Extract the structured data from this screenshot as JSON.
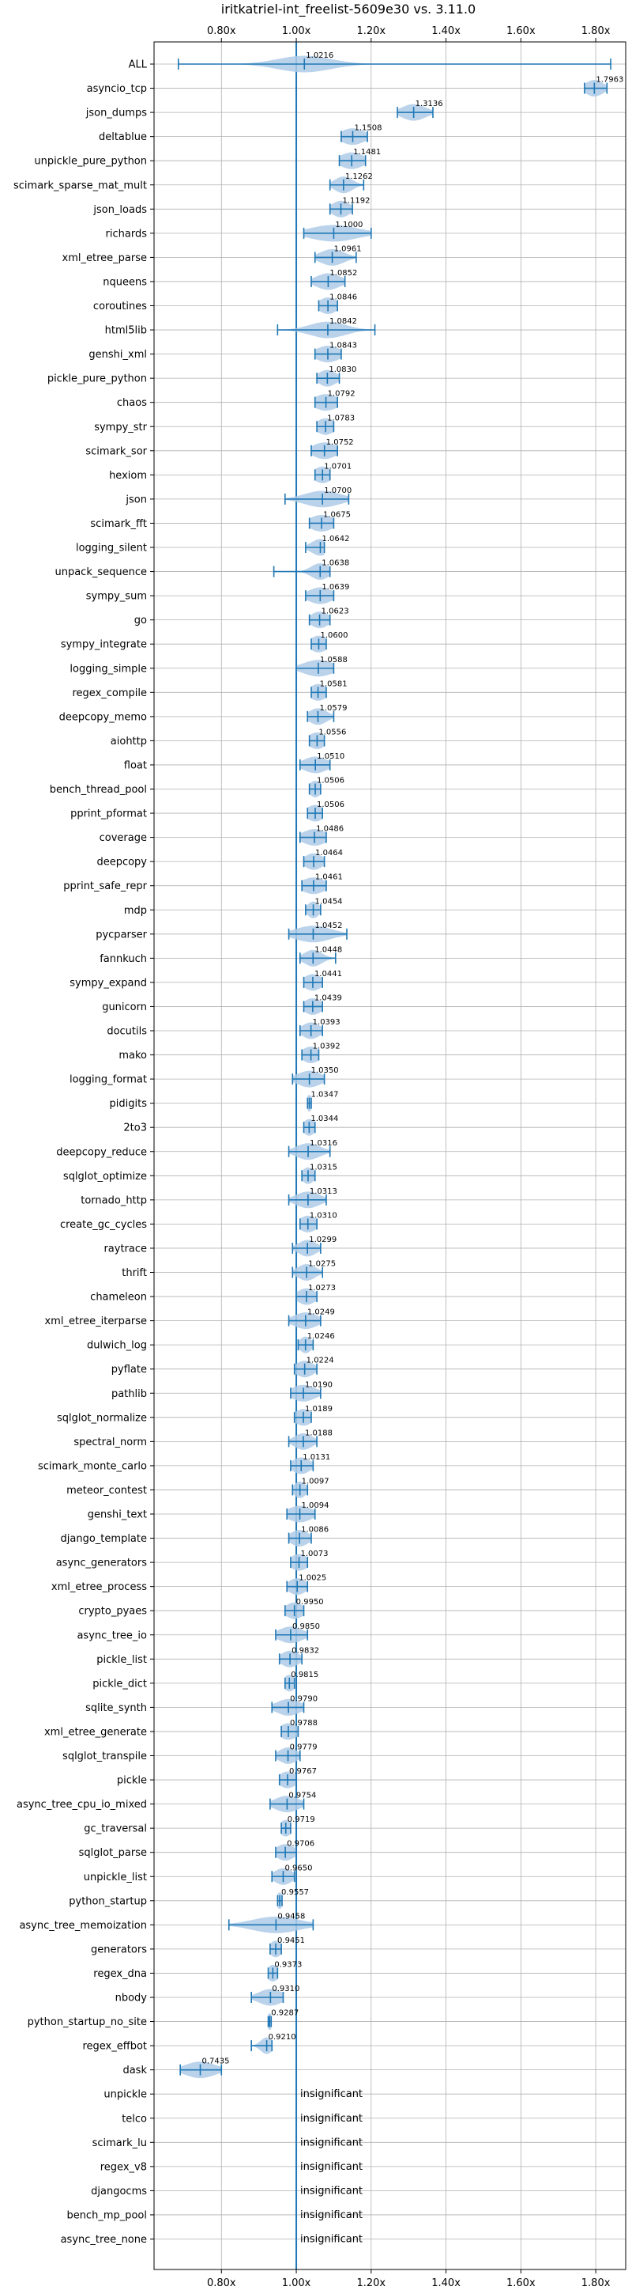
{
  "chart_data": {
    "type": "violin",
    "title": "iritkatriel-int_freelist-5609e30 vs. 3.11.0",
    "xlim": [
      0.62,
      1.88
    ],
    "x_ticks": [
      0.8,
      1.0,
      1.2,
      1.4,
      1.6,
      1.8
    ],
    "x_tick_labels": [
      "0.80x",
      "1.00x",
      "1.20x",
      "1.40x",
      "1.60x",
      "1.80x"
    ],
    "reference_line": 1.0,
    "grid": true,
    "insignificant_label": "insignificant",
    "colors": {
      "violin": "#aecbe8",
      "line": "#1f77b4",
      "grid": "#b0b0b0"
    },
    "benchmarks": [
      {
        "name": "ALL",
        "value": 1.0216,
        "label": "1.0216",
        "min": 0.685,
        "max": 1.84,
        "spread": 0.09
      },
      {
        "name": "asyncio_tcp",
        "value": 1.7963,
        "label": "1.7963",
        "min": 1.77,
        "max": 1.83,
        "spread": 0.03
      },
      {
        "name": "json_dumps",
        "value": 1.3136,
        "label": "1.3136",
        "min": 1.27,
        "max": 1.365,
        "spread": 0.04
      },
      {
        "name": "deltablue",
        "value": 1.1508,
        "label": "1.1508",
        "min": 1.12,
        "max": 1.19,
        "spread": 0.04
      },
      {
        "name": "unpickle_pure_python",
        "value": 1.1481,
        "label": "1.1481",
        "min": 1.115,
        "max": 1.185,
        "spread": 0.04
      },
      {
        "name": "scimark_sparse_mat_mult",
        "value": 1.1262,
        "label": "1.1262",
        "min": 1.09,
        "max": 1.18,
        "spread": 0.03
      },
      {
        "name": "json_loads",
        "value": 1.1192,
        "label": "1.1192",
        "min": 1.09,
        "max": 1.15,
        "spread": 0.03
      },
      {
        "name": "richards",
        "value": 1.1,
        "label": "1.1000",
        "min": 1.02,
        "max": 1.2,
        "spread": 0.08
      },
      {
        "name": "xml_etree_parse",
        "value": 1.0961,
        "label": "1.0961",
        "min": 1.05,
        "max": 1.16,
        "spread": 0.04
      },
      {
        "name": "nqueens",
        "value": 1.0852,
        "label": "1.0852",
        "min": 1.04,
        "max": 1.13,
        "spread": 0.04
      },
      {
        "name": "coroutines",
        "value": 1.0846,
        "label": "1.0846",
        "min": 1.06,
        "max": 1.11,
        "spread": 0.03
      },
      {
        "name": "html5lib",
        "value": 1.0842,
        "label": "1.0842",
        "min": 0.95,
        "max": 1.21,
        "spread": 0.06
      },
      {
        "name": "genshi_xml",
        "value": 1.0843,
        "label": "1.0843",
        "min": 1.05,
        "max": 1.12,
        "spread": 0.04
      },
      {
        "name": "pickle_pure_python",
        "value": 1.083,
        "label": "1.0830",
        "min": 1.055,
        "max": 1.115,
        "spread": 0.03
      },
      {
        "name": "chaos",
        "value": 1.0792,
        "label": "1.0792",
        "min": 1.05,
        "max": 1.11,
        "spread": 0.04
      },
      {
        "name": "sympy_str",
        "value": 1.0783,
        "label": "1.0783",
        "min": 1.055,
        "max": 1.1,
        "spread": 0.03
      },
      {
        "name": "scimark_sor",
        "value": 1.0752,
        "label": "1.0752",
        "min": 1.04,
        "max": 1.11,
        "spread": 0.04
      },
      {
        "name": "hexiom",
        "value": 1.0701,
        "label": "1.0701",
        "min": 1.05,
        "max": 1.09,
        "spread": 0.03
      },
      {
        "name": "json",
        "value": 1.07,
        "label": "1.0700",
        "min": 0.97,
        "max": 1.14,
        "spread": 0.06
      },
      {
        "name": "scimark_fft",
        "value": 1.0675,
        "label": "1.0675",
        "min": 1.035,
        "max": 1.1,
        "spread": 0.04
      },
      {
        "name": "logging_silent",
        "value": 1.0642,
        "label": "1.0642",
        "min": 1.025,
        "max": 1.075,
        "spread": 0.03
      },
      {
        "name": "unpack_sequence",
        "value": 1.0638,
        "label": "1.0638",
        "min": 0.94,
        "max": 1.09,
        "spread": 0.03
      },
      {
        "name": "sympy_sum",
        "value": 1.0639,
        "label": "1.0639",
        "min": 1.025,
        "max": 1.1,
        "spread": 0.04
      },
      {
        "name": "go",
        "value": 1.0623,
        "label": "1.0623",
        "min": 1.035,
        "max": 1.09,
        "spread": 0.03
      },
      {
        "name": "sympy_integrate",
        "value": 1.06,
        "label": "1.0600",
        "min": 1.04,
        "max": 1.08,
        "spread": 0.03
      },
      {
        "name": "logging_simple",
        "value": 1.0588,
        "label": "1.0588",
        "min": 1.0,
        "max": 1.1,
        "spread": 0.05
      },
      {
        "name": "regex_compile",
        "value": 1.0581,
        "label": "1.0581",
        "min": 1.04,
        "max": 1.08,
        "spread": 0.03
      },
      {
        "name": "deepcopy_memo",
        "value": 1.0579,
        "label": "1.0579",
        "min": 1.03,
        "max": 1.1,
        "spread": 0.03
      },
      {
        "name": "aiohttp",
        "value": 1.0556,
        "label": "1.0556",
        "min": 1.035,
        "max": 1.075,
        "spread": 0.03
      },
      {
        "name": "float",
        "value": 1.051,
        "label": "1.0510",
        "min": 1.01,
        "max": 1.09,
        "spread": 0.04
      },
      {
        "name": "bench_thread_pool",
        "value": 1.0506,
        "label": "1.0506",
        "min": 1.035,
        "max": 1.065,
        "spread": 0.02
      },
      {
        "name": "pprint_pformat",
        "value": 1.0506,
        "label": "1.0506",
        "min": 1.03,
        "max": 1.07,
        "spread": 0.03
      },
      {
        "name": "coverage",
        "value": 1.0486,
        "label": "1.0486",
        "min": 1.01,
        "max": 1.08,
        "spread": 0.04
      },
      {
        "name": "deepcopy",
        "value": 1.0464,
        "label": "1.0464",
        "min": 1.02,
        "max": 1.075,
        "spread": 0.03
      },
      {
        "name": "pprint_safe_repr",
        "value": 1.0461,
        "label": "1.0461",
        "min": 1.015,
        "max": 1.08,
        "spread": 0.04
      },
      {
        "name": "mdp",
        "value": 1.0454,
        "label": "1.0454",
        "min": 1.025,
        "max": 1.065,
        "spread": 0.02
      },
      {
        "name": "pycparser",
        "value": 1.0452,
        "label": "1.0452",
        "min": 0.98,
        "max": 1.135,
        "spread": 0.06
      },
      {
        "name": "fannkuch",
        "value": 1.0448,
        "label": "1.0448",
        "min": 1.01,
        "max": 1.105,
        "spread": 0.03
      },
      {
        "name": "sympy_expand",
        "value": 1.0441,
        "label": "1.0441",
        "min": 1.02,
        "max": 1.07,
        "spread": 0.03
      },
      {
        "name": "gunicorn",
        "value": 1.0439,
        "label": "1.0439",
        "min": 1.02,
        "max": 1.07,
        "spread": 0.03
      },
      {
        "name": "docutils",
        "value": 1.0393,
        "label": "1.0393",
        "min": 1.01,
        "max": 1.07,
        "spread": 0.03
      },
      {
        "name": "mako",
        "value": 1.0392,
        "label": "1.0392",
        "min": 1.015,
        "max": 1.06,
        "spread": 0.03
      },
      {
        "name": "logging_format",
        "value": 1.035,
        "label": "1.0350",
        "min": 0.99,
        "max": 1.075,
        "spread": 0.04
      },
      {
        "name": "pidigits",
        "value": 1.0347,
        "label": "1.0347",
        "min": 1.03,
        "max": 1.04,
        "spread": 0.01
      },
      {
        "name": "2to3",
        "value": 1.0344,
        "label": "1.0344",
        "min": 1.02,
        "max": 1.05,
        "spread": 0.02
      },
      {
        "name": "deepcopy_reduce",
        "value": 1.0316,
        "label": "1.0316",
        "min": 0.98,
        "max": 1.09,
        "spread": 0.04
      },
      {
        "name": "sqlglot_optimize",
        "value": 1.0315,
        "label": "1.0315",
        "min": 1.015,
        "max": 1.05,
        "spread": 0.02
      },
      {
        "name": "tornado_http",
        "value": 1.0313,
        "label": "1.0313",
        "min": 0.98,
        "max": 1.08,
        "spread": 0.04
      },
      {
        "name": "create_gc_cycles",
        "value": 1.031,
        "label": "1.0310",
        "min": 1.01,
        "max": 1.055,
        "spread": 0.03
      },
      {
        "name": "raytrace",
        "value": 1.0299,
        "label": "1.0299",
        "min": 0.99,
        "max": 1.065,
        "spread": 0.03
      },
      {
        "name": "thrift",
        "value": 1.0275,
        "label": "1.0275",
        "min": 0.99,
        "max": 1.07,
        "spread": 0.03
      },
      {
        "name": "chameleon",
        "value": 1.0273,
        "label": "1.0273",
        "min": 1.0,
        "max": 1.055,
        "spread": 0.03
      },
      {
        "name": "xml_etree_iterparse",
        "value": 1.0249,
        "label": "1.0249",
        "min": 0.98,
        "max": 1.065,
        "spread": 0.04
      },
      {
        "name": "dulwich_log",
        "value": 1.0246,
        "label": "1.0246",
        "min": 1.005,
        "max": 1.045,
        "spread": 0.02
      },
      {
        "name": "pyflate",
        "value": 1.0224,
        "label": "1.0224",
        "min": 0.995,
        "max": 1.055,
        "spread": 0.03
      },
      {
        "name": "pathlib",
        "value": 1.019,
        "label": "1.0190",
        "min": 0.985,
        "max": 1.065,
        "spread": 0.04
      },
      {
        "name": "sqlglot_normalize",
        "value": 1.0189,
        "label": "1.0189",
        "min": 0.995,
        "max": 1.04,
        "spread": 0.03
      },
      {
        "name": "spectral_norm",
        "value": 1.0188,
        "label": "1.0188",
        "min": 0.98,
        "max": 1.055,
        "spread": 0.03
      },
      {
        "name": "scimark_monte_carlo",
        "value": 1.0131,
        "label": "1.0131",
        "min": 0.985,
        "max": 1.045,
        "spread": 0.03
      },
      {
        "name": "meteor_contest",
        "value": 1.0097,
        "label": "1.0097",
        "min": 0.99,
        "max": 1.03,
        "spread": 0.02
      },
      {
        "name": "genshi_text",
        "value": 1.0094,
        "label": "1.0094",
        "min": 0.975,
        "max": 1.05,
        "spread": 0.04
      },
      {
        "name": "django_template",
        "value": 1.0086,
        "label": "1.0086",
        "min": 0.98,
        "max": 1.04,
        "spread": 0.03
      },
      {
        "name": "async_generators",
        "value": 1.0073,
        "label": "1.0073",
        "min": 0.985,
        "max": 1.03,
        "spread": 0.03
      },
      {
        "name": "xml_etree_process",
        "value": 1.0025,
        "label": "1.0025",
        "min": 0.975,
        "max": 1.03,
        "spread": 0.03
      },
      {
        "name": "crypto_pyaes",
        "value": 0.995,
        "label": "0.9950",
        "min": 0.97,
        "max": 1.02,
        "spread": 0.03
      },
      {
        "name": "async_tree_io",
        "value": 0.985,
        "label": "0.9850",
        "min": 0.945,
        "max": 1.03,
        "spread": 0.04
      },
      {
        "name": "pickle_list",
        "value": 0.9832,
        "label": "0.9832",
        "min": 0.955,
        "max": 1.015,
        "spread": 0.03
      },
      {
        "name": "pickle_dict",
        "value": 0.9815,
        "label": "0.9815",
        "min": 0.97,
        "max": 0.995,
        "spread": 0.02
      },
      {
        "name": "sqlite_synth",
        "value": 0.979,
        "label": "0.9790",
        "min": 0.935,
        "max": 1.02,
        "spread": 0.04
      },
      {
        "name": "xml_etree_generate",
        "value": 0.9788,
        "label": "0.9788",
        "min": 0.96,
        "max": 1.005,
        "spread": 0.03
      },
      {
        "name": "sqlglot_transpile",
        "value": 0.9779,
        "label": "0.9779",
        "min": 0.945,
        "max": 1.01,
        "spread": 0.03
      },
      {
        "name": "pickle",
        "value": 0.9767,
        "label": "0.9767",
        "min": 0.955,
        "max": 1.0,
        "spread": 0.03
      },
      {
        "name": "async_tree_cpu_io_mixed",
        "value": 0.9754,
        "label": "0.9754",
        "min": 0.93,
        "max": 1.02,
        "spread": 0.04
      },
      {
        "name": "gc_traversal",
        "value": 0.9719,
        "label": "0.9719",
        "min": 0.96,
        "max": 0.985,
        "spread": 0.02
      },
      {
        "name": "sqlglot_parse",
        "value": 0.9706,
        "label": "0.9706",
        "min": 0.945,
        "max": 1.0,
        "spread": 0.03
      },
      {
        "name": "unpickle_list",
        "value": 0.965,
        "label": "0.9650",
        "min": 0.935,
        "max": 0.995,
        "spread": 0.03
      },
      {
        "name": "python_startup",
        "value": 0.9557,
        "label": "0.9557",
        "min": 0.95,
        "max": 0.962,
        "spread": 0.01
      },
      {
        "name": "async_tree_memoization",
        "value": 0.9458,
        "label": "0.9458",
        "min": 0.82,
        "max": 1.045,
        "spread": 0.08
      },
      {
        "name": "generators",
        "value": 0.9451,
        "label": "0.9451",
        "min": 0.93,
        "max": 0.96,
        "spread": 0.02
      },
      {
        "name": "regex_dna",
        "value": 0.9373,
        "label": "0.9373",
        "min": 0.925,
        "max": 0.95,
        "spread": 0.02
      },
      {
        "name": "nbody",
        "value": 0.931,
        "label": "0.9310",
        "min": 0.88,
        "max": 0.965,
        "spread": 0.04
      },
      {
        "name": "python_startup_no_site",
        "value": 0.9287,
        "label": "0.9287",
        "min": 0.925,
        "max": 0.933,
        "spread": 0.01
      },
      {
        "name": "regex_effbot",
        "value": 0.921,
        "label": "0.9210",
        "min": 0.88,
        "max": 0.935,
        "spread": 0.02
      },
      {
        "name": "dask",
        "value": 0.7435,
        "label": "0.7435",
        "min": 0.69,
        "max": 0.8,
        "spread": 0.05
      },
      {
        "name": "unpickle",
        "insignificant": true
      },
      {
        "name": "telco",
        "insignificant": true
      },
      {
        "name": "scimark_lu",
        "insignificant": true
      },
      {
        "name": "regex_v8",
        "insignificant": true
      },
      {
        "name": "djangocms",
        "insignificant": true
      },
      {
        "name": "bench_mp_pool",
        "insignificant": true
      },
      {
        "name": "async_tree_none",
        "insignificant": true
      }
    ]
  }
}
